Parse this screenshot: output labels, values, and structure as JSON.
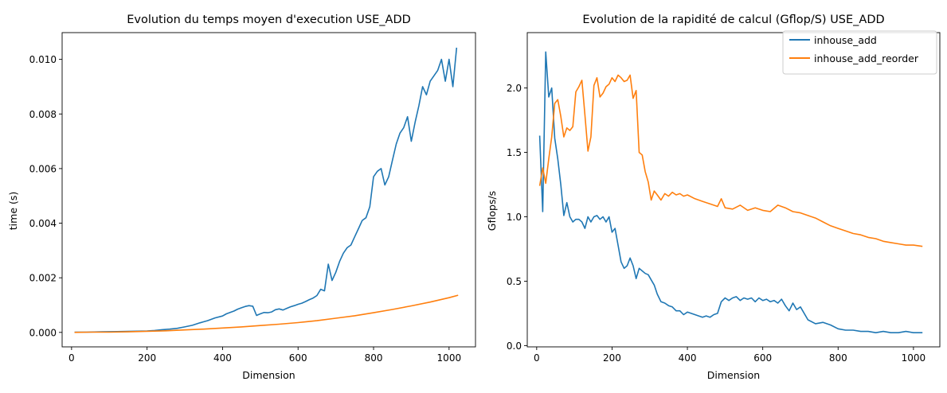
{
  "chart_data": [
    {
      "type": "line",
      "title": "Evolution du temps moyen d'execution USE_ADD",
      "xlabel": "Dimension",
      "ylabel": "time (s)",
      "xlim": [
        -25,
        1070
      ],
      "ylim": [
        -0.00053,
        0.01098
      ],
      "xticks": [
        0,
        200,
        400,
        600,
        800,
        1000
      ],
      "yticks": [
        0.0,
        0.002,
        0.004,
        0.006,
        0.008,
        0.01
      ],
      "ytick_labels": [
        "0.000",
        "0.002",
        "0.004",
        "0.006",
        "0.008",
        "0.010"
      ],
      "legend": null,
      "series": [
        {
          "color": "#1f77b4",
          "x": [
            8,
            40,
            80,
            120,
            160,
            200,
            220,
            240,
            260,
            280,
            300,
            320,
            340,
            360,
            380,
            400,
            410,
            420,
            430,
            440,
            450,
            460,
            470,
            480,
            490,
            500,
            510,
            520,
            530,
            540,
            550,
            560,
            570,
            580,
            590,
            600,
            610,
            620,
            630,
            640,
            650,
            660,
            670,
            680,
            690,
            700,
            710,
            720,
            730,
            740,
            750,
            760,
            770,
            780,
            790,
            800,
            810,
            820,
            830,
            840,
            850,
            860,
            870,
            880,
            890,
            900,
            910,
            920,
            930,
            940,
            950,
            960,
            970,
            980,
            990,
            1000,
            1010,
            1020
          ],
          "y": [
            1e-05,
            1e-05,
            2e-05,
            3e-05,
            4e-05,
            5e-05,
            7e-05,
            0.0001,
            0.00012,
            0.00015,
            0.0002,
            0.00026,
            0.00035,
            0.00043,
            0.00053,
            0.0006,
            0.00068,
            0.00073,
            0.00078,
            0.00085,
            0.0009,
            0.00095,
            0.00098,
            0.00096,
            0.00062,
            0.00068,
            0.00073,
            0.00072,
            0.00075,
            0.00083,
            0.00086,
            0.00082,
            0.00088,
            0.00094,
            0.00098,
            0.00103,
            0.00107,
            0.00113,
            0.0012,
            0.00126,
            0.00135,
            0.00158,
            0.00152,
            0.0025,
            0.0019,
            0.0022,
            0.0026,
            0.0029,
            0.0031,
            0.0032,
            0.0035,
            0.0038,
            0.0041,
            0.0042,
            0.0046,
            0.0057,
            0.0059,
            0.006,
            0.0054,
            0.0057,
            0.0063,
            0.0069,
            0.0073,
            0.0075,
            0.0079,
            0.007,
            0.0077,
            0.0083,
            0.009,
            0.0087,
            0.0092,
            0.0094,
            0.0096,
            0.01,
            0.0092,
            0.01,
            0.009,
            0.01043
          ]
        },
        {
          "color": "#ff7f0e",
          "x": [
            8,
            50,
            100,
            150,
            200,
            250,
            300,
            350,
            400,
            450,
            500,
            550,
            600,
            650,
            700,
            750,
            800,
            850,
            900,
            950,
            1000,
            1024
          ],
          "y": [
            0.0,
            1e-05,
            1e-05,
            2e-05,
            4e-05,
            6e-05,
            9e-05,
            0.00012,
            0.00016,
            0.0002,
            0.00025,
            0.0003,
            0.00036,
            0.00043,
            0.00052,
            0.00061,
            0.00072,
            0.00084,
            0.00097,
            0.00111,
            0.00127,
            0.00136
          ]
        }
      ]
    },
    {
      "type": "line",
      "title": "Evolution de la rapidité de calcul (Gflop/S) USE_ADD",
      "xlabel": "Dimension",
      "ylabel": "Gflops/s",
      "xlim": [
        -25,
        1070
      ],
      "ylim": [
        -0.01,
        2.43
      ],
      "xticks": [
        0,
        200,
        400,
        600,
        800,
        1000
      ],
      "yticks": [
        0.0,
        0.5,
        1.0,
        1.5,
        2.0
      ],
      "ytick_labels": [
        "0.0",
        "0.5",
        "1.0",
        "1.5",
        "2.0"
      ],
      "legend": "top-right",
      "series": [
        {
          "name": "inhouse_add",
          "color": "#1f77b4",
          "x": [
            8,
            16,
            24,
            32,
            40,
            48,
            56,
            64,
            72,
            80,
            88,
            96,
            104,
            112,
            120,
            128,
            136,
            144,
            152,
            160,
            168,
            176,
            184,
            192,
            200,
            208,
            216,
            224,
            232,
            240,
            248,
            256,
            264,
            272,
            280,
            288,
            296,
            304,
            312,
            320,
            330,
            340,
            350,
            360,
            370,
            380,
            390,
            400,
            410,
            420,
            430,
            440,
            450,
            460,
            470,
            480,
            490,
            500,
            510,
            520,
            530,
            540,
            550,
            560,
            570,
            580,
            590,
            600,
            610,
            620,
            630,
            640,
            650,
            660,
            670,
            680,
            690,
            700,
            720,
            740,
            760,
            780,
            800,
            820,
            840,
            860,
            880,
            900,
            920,
            940,
            960,
            980,
            1000,
            1024
          ],
          "y": [
            1.63,
            1.04,
            2.28,
            1.93,
            2.0,
            1.61,
            1.45,
            1.25,
            1.01,
            1.11,
            1.0,
            0.96,
            0.98,
            0.98,
            0.96,
            0.91,
            1.0,
            0.96,
            1.0,
            1.01,
            0.98,
            1.0,
            0.96,
            1.0,
            0.88,
            0.91,
            0.78,
            0.65,
            0.6,
            0.62,
            0.68,
            0.62,
            0.52,
            0.6,
            0.58,
            0.56,
            0.55,
            0.51,
            0.47,
            0.4,
            0.34,
            0.33,
            0.31,
            0.3,
            0.27,
            0.27,
            0.24,
            0.26,
            0.25,
            0.24,
            0.23,
            0.22,
            0.23,
            0.22,
            0.24,
            0.25,
            0.34,
            0.37,
            0.35,
            0.37,
            0.38,
            0.35,
            0.37,
            0.36,
            0.37,
            0.34,
            0.37,
            0.35,
            0.36,
            0.34,
            0.35,
            0.33,
            0.36,
            0.31,
            0.27,
            0.33,
            0.28,
            0.3,
            0.2,
            0.17,
            0.18,
            0.16,
            0.13,
            0.12,
            0.12,
            0.11,
            0.11,
            0.1,
            0.11,
            0.1,
            0.1,
            0.11,
            0.1,
            0.1
          ]
        },
        {
          "name": "inhouse_add_reorder",
          "color": "#ff7f0e",
          "x": [
            8,
            16,
            24,
            32,
            40,
            48,
            56,
            64,
            72,
            80,
            88,
            96,
            104,
            112,
            120,
            128,
            136,
            144,
            152,
            160,
            168,
            176,
            184,
            192,
            200,
            208,
            216,
            224,
            232,
            240,
            248,
            256,
            264,
            272,
            280,
            288,
            296,
            304,
            312,
            320,
            330,
            340,
            350,
            360,
            370,
            380,
            390,
            400,
            420,
            440,
            460,
            480,
            490,
            500,
            520,
            540,
            560,
            580,
            600,
            620,
            640,
            660,
            680,
            700,
            720,
            740,
            760,
            780,
            800,
            820,
            840,
            860,
            880,
            900,
            920,
            940,
            960,
            980,
            1000,
            1024
          ],
          "y": [
            1.24,
            1.38,
            1.26,
            1.45,
            1.62,
            1.88,
            1.91,
            1.78,
            1.62,
            1.69,
            1.67,
            1.7,
            1.97,
            2.01,
            2.06,
            1.79,
            1.51,
            1.62,
            2.02,
            2.08,
            1.93,
            1.96,
            2.01,
            2.03,
            2.08,
            2.05,
            2.1,
            2.08,
            2.05,
            2.06,
            2.1,
            1.92,
            1.98,
            1.5,
            1.48,
            1.35,
            1.27,
            1.13,
            1.2,
            1.17,
            1.13,
            1.18,
            1.16,
            1.19,
            1.17,
            1.18,
            1.16,
            1.17,
            1.14,
            1.12,
            1.1,
            1.08,
            1.14,
            1.07,
            1.06,
            1.09,
            1.05,
            1.07,
            1.05,
            1.04,
            1.09,
            1.07,
            1.04,
            1.03,
            1.01,
            0.99,
            0.96,
            0.93,
            0.91,
            0.89,
            0.87,
            0.86,
            0.84,
            0.83,
            0.81,
            0.8,
            0.79,
            0.78,
            0.78,
            0.77
          ]
        }
      ]
    }
  ]
}
